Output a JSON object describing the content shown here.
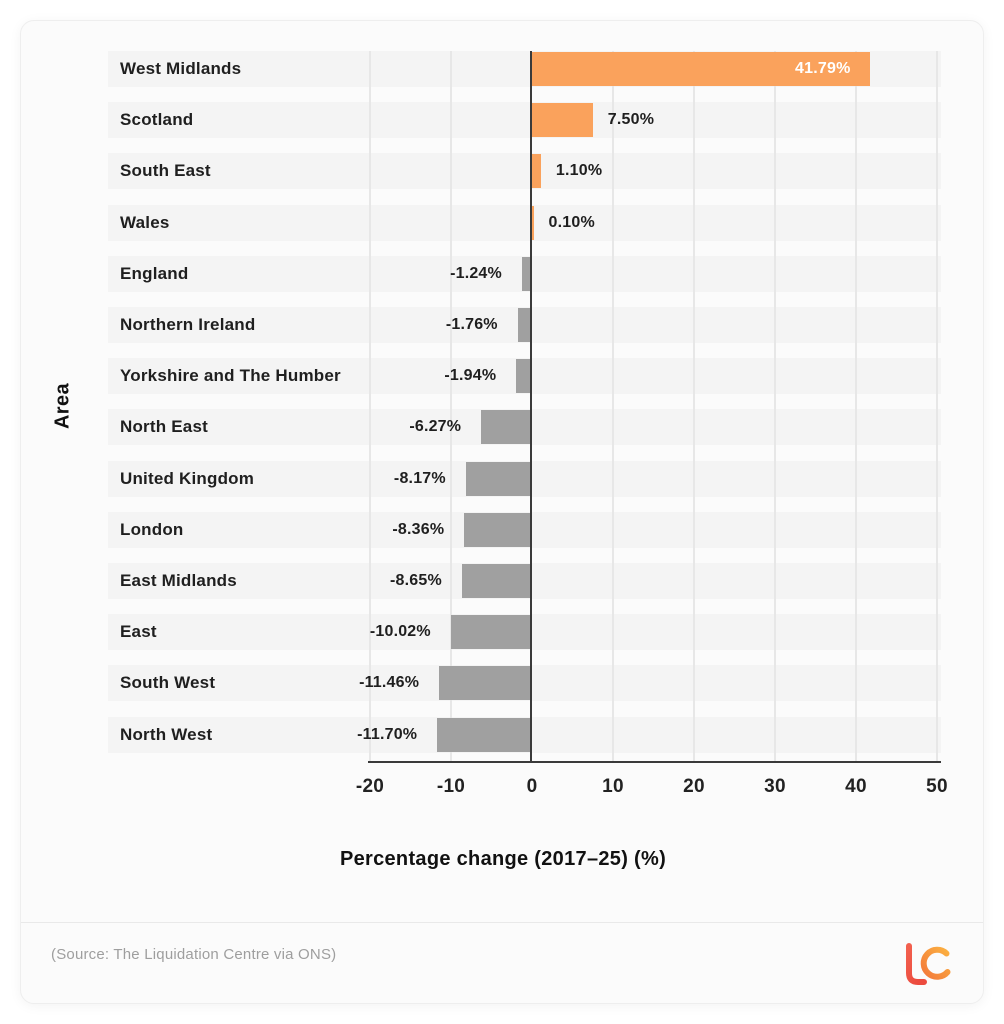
{
  "chart_data": {
    "type": "bar",
    "orientation": "horizontal",
    "categories": [
      "West Midlands",
      "Scotland",
      "South East",
      "Wales",
      "England",
      "Northern Ireland",
      "Yorkshire and The Humber",
      "North East",
      "United Kingdom",
      "London",
      "East Midlands",
      "East",
      "South West",
      "North West"
    ],
    "values": [
      41.79,
      7.5,
      1.1,
      0.1,
      -1.24,
      -1.76,
      -1.94,
      -6.27,
      -8.17,
      -8.36,
      -8.65,
      -10.02,
      -11.46,
      -11.7
    ],
    "value_labels": [
      "41.79%",
      "7.50%",
      "1.10%",
      "0.10%",
      "-1.24%",
      "-1.76%",
      "-1.94%",
      "-6.27%",
      "-8.17%",
      "-8.36%",
      "-8.65%",
      "-10.02%",
      "-11.46%",
      "-11.70%"
    ],
    "title": "",
    "xlabel": "Percentage change (2017–25) (%)",
    "ylabel": "Area",
    "xlim": [
      -20,
      50
    ],
    "xticks": [
      -20,
      -10,
      0,
      10,
      20,
      30,
      40,
      50
    ],
    "grid": true,
    "legend": false,
    "positive_color": "#faa25c",
    "negative_color": "#a0a0a0",
    "band_color": "#f4f4f4",
    "axis_line_color": "#3a3a3a"
  },
  "footer": {
    "source": "(Source: The Liquidation Centre via ONS)",
    "logo_text": "LC",
    "logo_color_l": "#ee5244",
    "logo_color_c_start": "#f3793a",
    "logo_color_c_end": "#fbb041"
  }
}
